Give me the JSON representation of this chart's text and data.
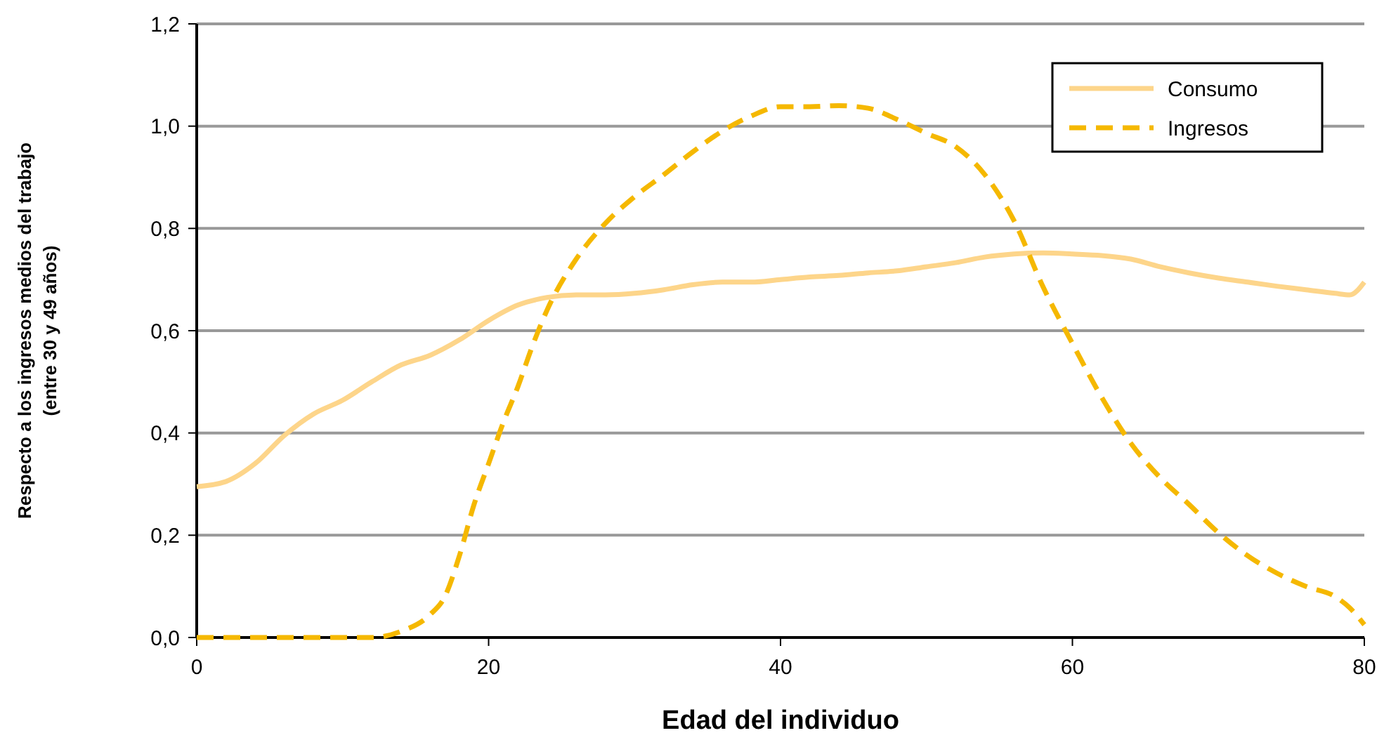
{
  "chart_data": {
    "type": "line",
    "xlabel": "Edad del individuo",
    "ylabel": "Respecto a los ingresos medios del trabajo\n(entre 30 y 49 años)",
    "xlim": [
      0,
      80
    ],
    "xticks": [
      0,
      20,
      40,
      60,
      80
    ],
    "ylim": [
      0,
      1.2
    ],
    "yticks": [
      {
        "value": 0,
        "label": "0,0"
      },
      {
        "value": 0.2,
        "label": "0,2"
      },
      {
        "value": 0.4,
        "label": "0,4"
      },
      {
        "value": 0.6,
        "label": "0,6"
      },
      {
        "value": 0.8,
        "label": "0,8"
      },
      {
        "value": 1,
        "label": "1,0"
      },
      {
        "value": 1.2,
        "label": "1,2"
      }
    ],
    "grid": "y",
    "legend": "top right",
    "series": [
      {
        "name": "Consumo",
        "color": "#fdd58a",
        "line_style": "solid",
        "x": [
          0,
          2,
          4,
          6,
          8,
          10,
          12,
          14,
          16,
          18,
          20,
          22,
          24,
          26,
          28,
          30,
          32,
          34,
          36,
          38,
          40,
          42,
          44,
          46,
          48,
          50,
          52,
          54,
          56,
          58,
          60,
          62,
          64,
          66,
          68,
          70,
          72,
          74,
          76,
          78,
          79,
          80
        ],
        "values": [
          0.295,
          0.305,
          0.34,
          0.395,
          0.437,
          0.464,
          0.5,
          0.533,
          0.552,
          0.582,
          0.62,
          0.65,
          0.665,
          0.67,
          0.67,
          0.673,
          0.68,
          0.69,
          0.695,
          0.695,
          0.7,
          0.705,
          0.708,
          0.713,
          0.717,
          0.725,
          0.733,
          0.744,
          0.75,
          0.752,
          0.75,
          0.747,
          0.74,
          0.725,
          0.713,
          0.703,
          0.695,
          0.687,
          0.68,
          0.673,
          0.67,
          0.695
        ]
      },
      {
        "name": "Ingresos",
        "color": "#f5b800",
        "line_style": "dashed",
        "x": [
          0,
          2,
          4,
          6,
          8,
          10,
          12,
          14,
          16,
          17,
          18,
          19,
          20,
          21,
          22,
          23,
          24,
          26,
          28,
          30,
          32,
          34,
          36,
          38,
          40,
          42,
          44,
          46,
          48,
          50,
          52,
          54,
          56,
          58,
          60,
          62,
          64,
          66,
          68,
          70,
          72,
          74,
          76,
          78,
          79,
          80
        ],
        "values": [
          0,
          0,
          0,
          0,
          0,
          0,
          0,
          0.012,
          0.045,
          0.08,
          0.16,
          0.26,
          0.34,
          0.42,
          0.49,
          0.57,
          0.64,
          0.74,
          0.81,
          0.862,
          0.905,
          0.95,
          0.99,
          1.02,
          1.038,
          1.038,
          1.04,
          1.035,
          1.013,
          0.986,
          0.96,
          0.905,
          0.815,
          0.685,
          0.575,
          0.47,
          0.38,
          0.313,
          0.26,
          0.205,
          0.16,
          0.126,
          0.1,
          0.08,
          0.058,
          0.025
        ]
      }
    ]
  }
}
